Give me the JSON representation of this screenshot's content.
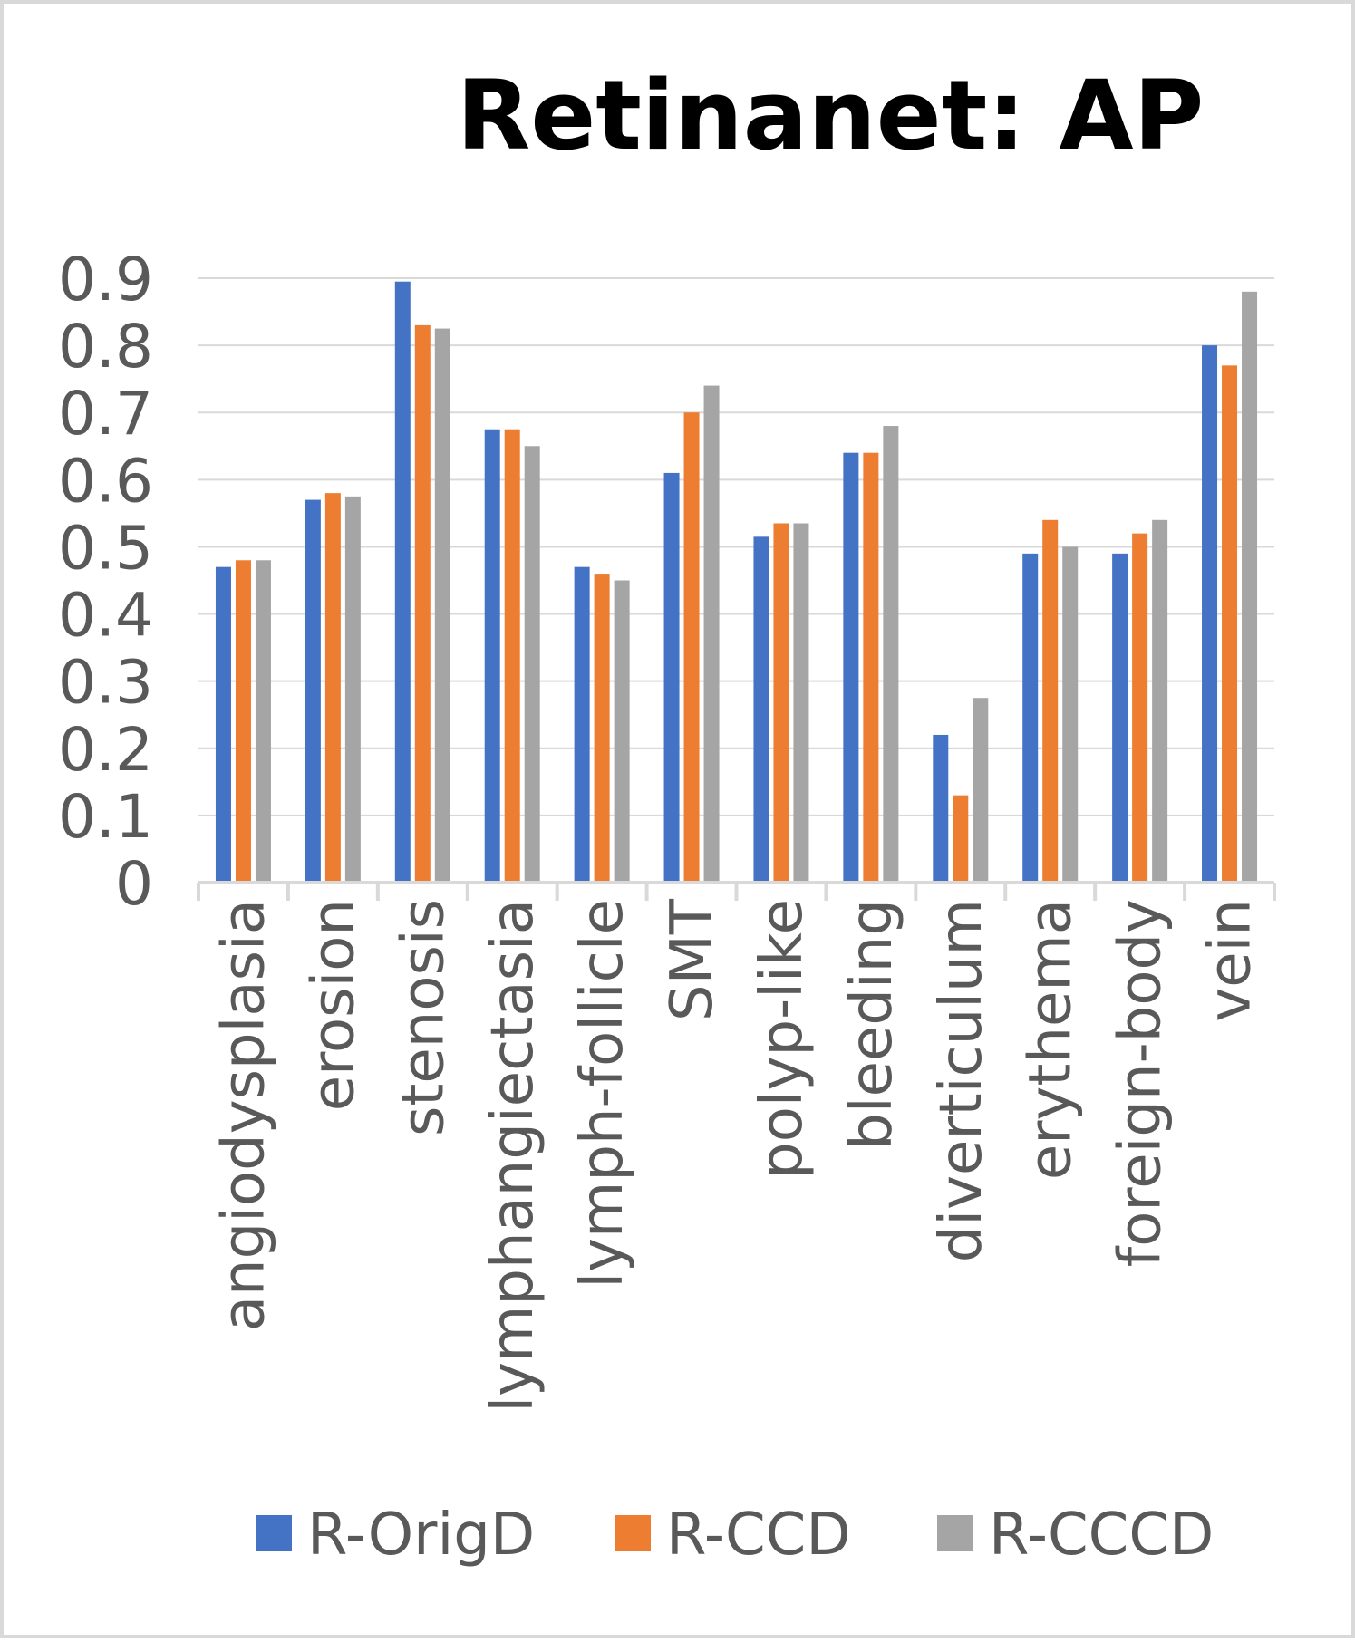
{
  "chart_data": {
    "type": "bar",
    "title": "Retinanet: AP",
    "xlabel": "",
    "ylabel": "",
    "ylim": [
      0,
      0.9
    ],
    "y_ticks": [
      0,
      0.1,
      0.2,
      0.3,
      0.4,
      0.5,
      0.6,
      0.7,
      0.8,
      0.9
    ],
    "y_tick_labels": [
      "0",
      "0.1",
      "0.2",
      "0.3",
      "0.4",
      "0.5",
      "0.6",
      "0.7",
      "0.8",
      "0.9"
    ],
    "grid": true,
    "legend_position": "bottom",
    "categories": [
      "angiodysplasia",
      "erosion",
      "stenosis",
      "lymphangiectasia",
      "lymph-follicle",
      "SMT",
      "polyp-like",
      "bleeding",
      "diverticulum",
      "erythema",
      "foreign-body",
      "vein"
    ],
    "series": [
      {
        "name": "R-OrigD",
        "color": "#4472c4",
        "values": [
          0.47,
          0.57,
          0.895,
          0.675,
          0.47,
          0.61,
          0.515,
          0.64,
          0.22,
          0.49,
          0.49,
          0.8
        ]
      },
      {
        "name": "R-CCD",
        "color": "#ed7d31",
        "values": [
          0.48,
          0.58,
          0.83,
          0.675,
          0.46,
          0.7,
          0.535,
          0.64,
          0.13,
          0.54,
          0.52,
          0.77
        ]
      },
      {
        "name": "R-CCCD",
        "color": "#a5a5a5",
        "values": [
          0.48,
          0.575,
          0.825,
          0.65,
          0.45,
          0.74,
          0.535,
          0.68,
          0.275,
          0.5,
          0.54,
          0.88
        ]
      }
    ]
  }
}
